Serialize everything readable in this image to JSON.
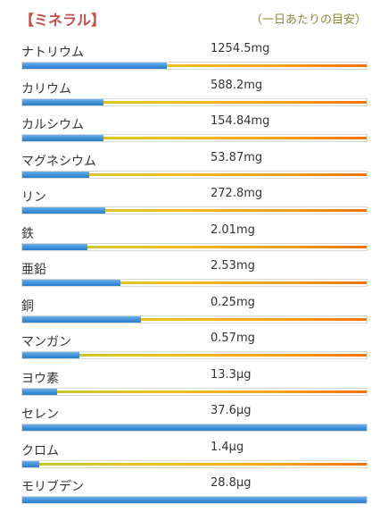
{
  "header": {
    "title": "【ミネラル】",
    "note": "（一日あたりの目安）"
  },
  "minerals": [
    {
      "name": "ナトリウム",
      "amount": "1254.5mg",
      "fill": 0.42
    },
    {
      "name": "カリウム",
      "amount": "588.2mg",
      "fill": 0.235
    },
    {
      "name": "カルシウム",
      "amount": "154.84mg",
      "fill": 0.235
    },
    {
      "name": "マグネシウム",
      "amount": "53.87mg",
      "fill": 0.195
    },
    {
      "name": "リン",
      "amount": "272.8mg",
      "fill": 0.24
    },
    {
      "name": "鉄",
      "amount": "2.01mg",
      "fill": 0.19
    },
    {
      "name": "亜鉛",
      "amount": "2.53mg",
      "fill": 0.285
    },
    {
      "name": "銅",
      "amount": "0.25mg",
      "fill": 0.345
    },
    {
      "name": "マンガン",
      "amount": "0.57mg",
      "fill": 0.165
    },
    {
      "name": "ヨウ素",
      "amount": "13.3μg",
      "fill": 0.1
    },
    {
      "name": "セレン",
      "amount": "37.6μg",
      "fill": 1.0
    },
    {
      "name": "クロム",
      "amount": "1.4μg",
      "fill": 0.05
    },
    {
      "name": "モリブデン",
      "amount": "28.8μg",
      "fill": 1.0
    }
  ]
}
